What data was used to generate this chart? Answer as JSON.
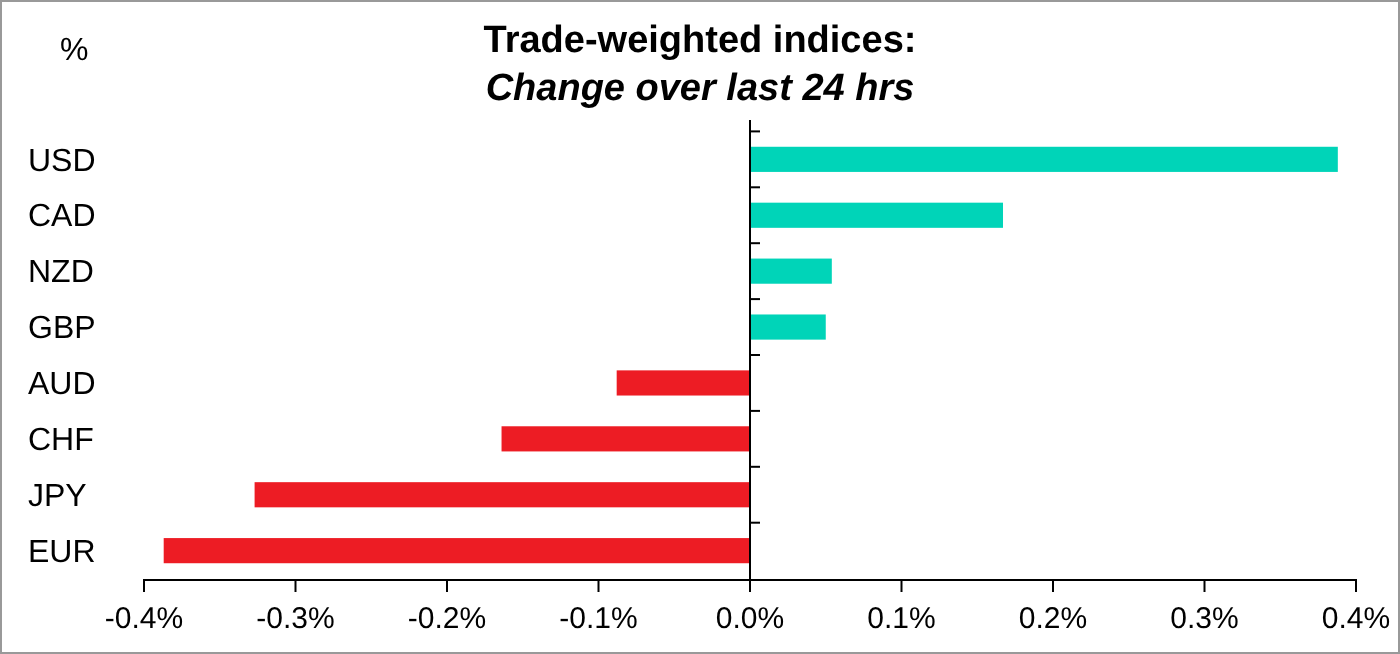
{
  "chart_data": {
    "type": "bar",
    "orientation": "horizontal",
    "title": "Trade-weighted indices:",
    "subtitle": "Change over last 24 hrs",
    "annotations": [
      "%"
    ],
    "categories": [
      "USD",
      "CAD",
      "NZD",
      "GBP",
      "AUD",
      "CHF",
      "JPY",
      "EUR"
    ],
    "values": [
      0.388,
      0.167,
      0.054,
      0.05,
      -0.088,
      -0.164,
      -0.327,
      -0.387
    ],
    "colors": [
      "#00d4b8",
      "#00d4b8",
      "#00d4b8",
      "#00d4b8",
      "#ed1c24",
      "#ed1c24",
      "#ed1c24",
      "#ed1c24"
    ],
    "xlim": [
      -0.4,
      0.4
    ],
    "xticks": [
      {
        "value": -0.4,
        "label": "-0.4%"
      },
      {
        "value": -0.3,
        "label": "-0.3%"
      },
      {
        "value": -0.2,
        "label": "-0.2%"
      },
      {
        "value": -0.1,
        "label": "-0.1%"
      },
      {
        "value": 0,
        "label": "0.0%"
      },
      {
        "value": 0.1,
        "label": "0.1%"
      },
      {
        "value": 0.2,
        "label": "0.2%"
      },
      {
        "value": 0.3,
        "label": "0.3%"
      },
      {
        "value": 0.4,
        "label": "0.4%"
      }
    ],
    "tick_labels": "xy"
  }
}
